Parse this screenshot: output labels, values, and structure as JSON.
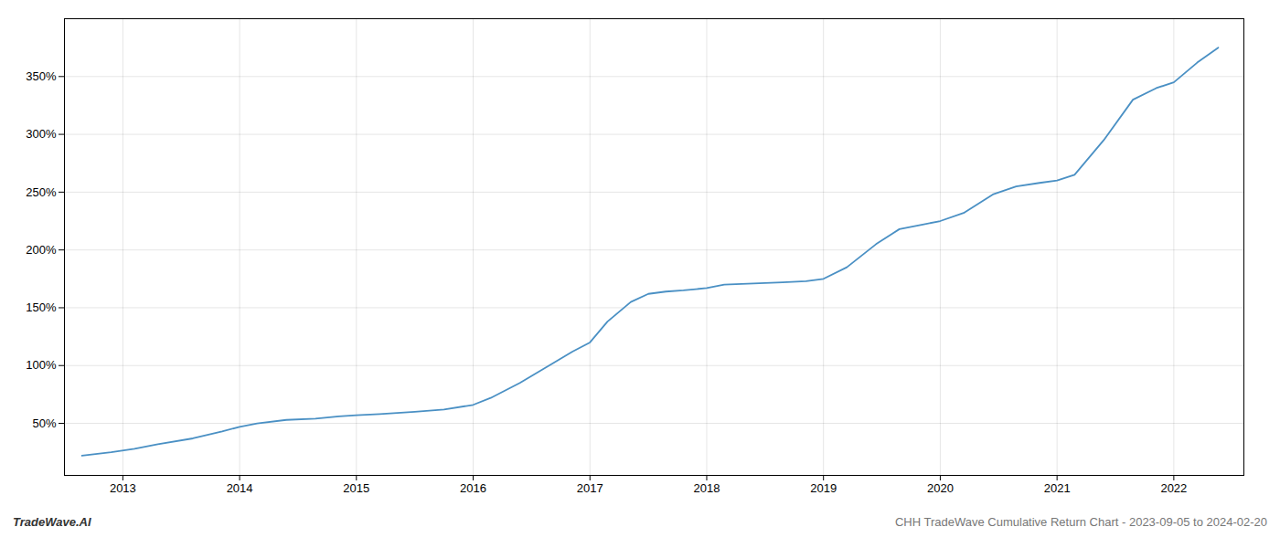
{
  "chart_data": {
    "type": "line",
    "annotations": [
      "TradeWave.AI",
      "CHH TradeWave Cumulative Return Chart - 2023-09-05 to 2024-02-20"
    ],
    "x": [
      2012.65,
      2012.9,
      2013.1,
      2013.3,
      2013.6,
      2013.85,
      2014.0,
      2014.15,
      2014.4,
      2014.65,
      2014.85,
      2015.0,
      2015.2,
      2015.5,
      2015.75,
      2016.0,
      2016.15,
      2016.4,
      2016.65,
      2016.85,
      2017.0,
      2017.15,
      2017.35,
      2017.5,
      2017.65,
      2017.8,
      2018.0,
      2018.15,
      2018.4,
      2018.65,
      2018.85,
      2019.0,
      2019.2,
      2019.45,
      2019.65,
      2019.85,
      2020.0,
      2020.2,
      2020.45,
      2020.65,
      2020.85,
      2021.0,
      2021.15,
      2021.4,
      2021.65,
      2021.85,
      2022.0,
      2022.2,
      2022.38
    ],
    "values": [
      22,
      25,
      28,
      32,
      37,
      43,
      47,
      50,
      53,
      54,
      56,
      57,
      58,
      60,
      62,
      66,
      72,
      85,
      100,
      112,
      120,
      138,
      155,
      162,
      164,
      165,
      167,
      170,
      171,
      172,
      173,
      175,
      185,
      205,
      218,
      222,
      225,
      232,
      248,
      255,
      258,
      260,
      265,
      295,
      330,
      340,
      345,
      362,
      375
    ],
    "color": "#4a90c4",
    "xlim": [
      2012.5,
      2022.6
    ],
    "xticks": [
      2013,
      2014,
      2015,
      2016,
      2017,
      2018,
      2019,
      2020,
      2021,
      2022
    ],
    "ylim": [
      5,
      400
    ],
    "yticks": [
      {
        "value": 50,
        "label": "50%"
      },
      {
        "value": 100,
        "label": "100%"
      },
      {
        "value": 150,
        "label": "150%"
      },
      {
        "value": 200,
        "label": "200%"
      },
      {
        "value": 250,
        "label": "250%"
      },
      {
        "value": 300,
        "label": "300%"
      },
      {
        "value": 350,
        "label": "350%"
      }
    ],
    "grid": true
  }
}
